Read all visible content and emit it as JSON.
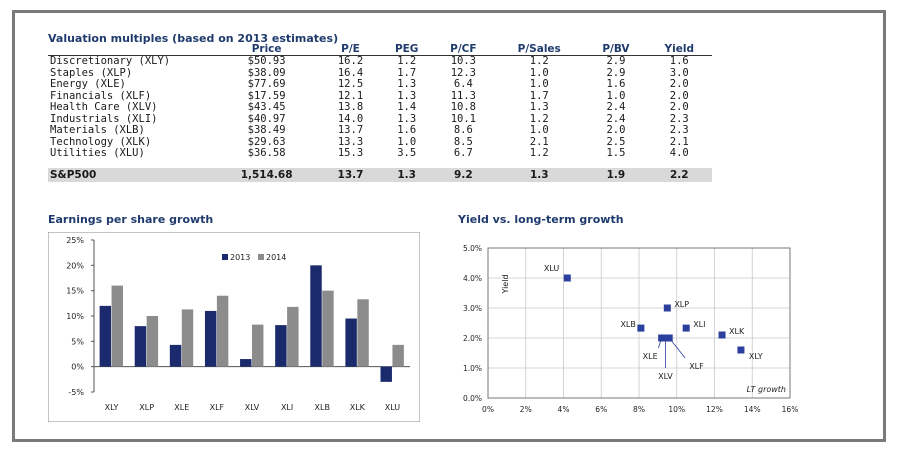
{
  "table": {
    "title": "Valuation multiples (based on 2013 estimates)",
    "columns": [
      "",
      "Price",
      "P/E",
      "PEG",
      "P/CF",
      "P/Sales",
      "P/BV",
      "Yield"
    ],
    "rows": [
      [
        "Discretionary (XLY)",
        "$50.93",
        "16.2",
        "1.2",
        "10.3",
        "1.2",
        "2.9",
        "1.6"
      ],
      [
        "Staples (XLP)",
        "$38.09",
        "16.4",
        "1.7",
        "12.3",
        "1.0",
        "2.9",
        "3.0"
      ],
      [
        "Energy (XLE)",
        "$77.69",
        "12.5",
        "1.3",
        "6.4",
        "1.0",
        "1.6",
        "2.0"
      ],
      [
        "Financials (XLF)",
        "$17.59",
        "12.1",
        "1.3",
        "11.3",
        "1.7",
        "1.0",
        "2.0"
      ],
      [
        "Health Care (XLV)",
        "$43.45",
        "13.8",
        "1.4",
        "10.8",
        "1.3",
        "2.4",
        "2.0"
      ],
      [
        "Industrials (XLI)",
        "$40.97",
        "14.0",
        "1.3",
        "10.1",
        "1.2",
        "2.4",
        "2.3"
      ],
      [
        "Materials (XLB)",
        "$38.49",
        "13.7",
        "1.6",
        "8.6",
        "1.0",
        "2.0",
        "2.3"
      ],
      [
        "Technology (XLK)",
        "$29.63",
        "13.3",
        "1.0",
        "8.5",
        "2.1",
        "2.5",
        "2.1"
      ],
      [
        "Utilities (XLU)",
        "$36.58",
        "15.3",
        "3.5",
        "6.7",
        "1.2",
        "1.5",
        "4.0"
      ]
    ],
    "total_row": [
      "S&P500",
      "1,514.68",
      "13.7",
      "1.3",
      "9.2",
      "1.3",
      "1.9",
      "2.2"
    ]
  },
  "chart_data": [
    {
      "type": "bar",
      "title": "Earnings per share growth",
      "categories": [
        "XLY",
        "XLP",
        "XLE",
        "XLF",
        "XLV",
        "XLI",
        "XLB",
        "XLK",
        "XLU"
      ],
      "series": [
        {
          "name": "2013",
          "color": "#1a2a6c",
          "values": [
            12,
            8,
            4.3,
            11,
            1.5,
            8.2,
            20,
            9.5,
            -3
          ]
        },
        {
          "name": "2014",
          "color": "#8c8c8c",
          "values": [
            16,
            10,
            11.3,
            14,
            8.3,
            11.8,
            15,
            13.3,
            4.3
          ]
        }
      ],
      "ylim": [
        -5,
        25
      ],
      "yticks": [
        "-5%",
        "0%",
        "5%",
        "10%",
        "15%",
        "20%",
        "25%"
      ],
      "legend": "top-center",
      "grid": false
    },
    {
      "type": "scatter",
      "title": "Yield vs. long-term growth",
      "xlabel": "LT growth",
      "ylabel": "Yield",
      "xlim": [
        0,
        16
      ],
      "ylim": [
        0,
        5
      ],
      "xticks": [
        "0%",
        "2%",
        "4%",
        "6%",
        "8%",
        "10%",
        "12%",
        "14%",
        "16%"
      ],
      "yticks": [
        "0.0%",
        "1.0%",
        "2.0%",
        "3.0%",
        "4.0%",
        "5.0%"
      ],
      "grid": true,
      "color": "#2a3f9e",
      "points": [
        {
          "label": "XLU",
          "x": 4.2,
          "y": 4.0
        },
        {
          "label": "XLP",
          "x": 9.5,
          "y": 3.0
        },
        {
          "label": "XLB",
          "x": 8.1,
          "y": 2.33
        },
        {
          "label": "XLI",
          "x": 10.5,
          "y": 2.33
        },
        {
          "label": "XLK",
          "x": 12.4,
          "y": 2.1
        },
        {
          "label": "XLY",
          "x": 13.4,
          "y": 1.6
        },
        {
          "label": "XLE",
          "x": 9.2,
          "y": 2.0
        },
        {
          "label": "XLV",
          "x": 9.4,
          "y": 2.0
        },
        {
          "label": "XLF",
          "x": 9.6,
          "y": 2.0
        }
      ]
    }
  ]
}
